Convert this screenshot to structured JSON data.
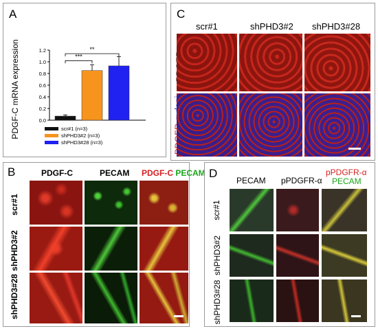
{
  "panelA": {
    "label": "A",
    "chart_data": {
      "type": "bar",
      "ylabel": "PDGF-C mRNA expression",
      "ylim": [
        0,
        1.2
      ],
      "yticks": [
        "0.0",
        "0.2",
        "0.4",
        "0.6",
        "0.8",
        "1.0",
        "1.2"
      ],
      "categories": [
        "scr#1 (n=3)",
        "shPHD3#2 (n=3)",
        "shPHD3#28 (n=3)"
      ],
      "values": [
        0.07,
        0.85,
        0.93
      ],
      "errors": [
        0.02,
        0.1,
        0.16
      ],
      "colors": [
        "#111111",
        "#f7941d",
        "#1f22f0"
      ],
      "legend": [
        "scr#1 (n=3)",
        "shPHD3#2 (n=3)",
        "shPHD3#28 (n=3)"
      ],
      "annotations": [
        "***",
        "**"
      ]
    }
  },
  "panelB": {
    "label": "B",
    "col1": "PDGF-C",
    "col2": "PECAM",
    "col3a": "PDGF-C",
    "col3b": "PECAM",
    "rows": [
      "scr#1",
      "shPHD3#2",
      "shPHD3#28"
    ]
  },
  "panelC": {
    "label": "C",
    "cols": [
      "scr#1",
      "shPHD3#2",
      "shPHD3#28"
    ],
    "row1": "PDGFR-α",
    "row2a": "PDGFR-α",
    "row2b": "dapi"
  },
  "panelD": {
    "label": "D",
    "col1": "PECAM",
    "col2": "pPDGFR-α",
    "col3a": "pPDGFR-α",
    "col3b": "PECAM",
    "rows": [
      "scr#1",
      "shPHD3#2",
      "shPHD3#28"
    ]
  },
  "colors": {
    "red_channel": "#c0201c",
    "green_channel": "#2fa52a",
    "blue_channel": "#3a2fb0",
    "merge_yellow": "#b8a025"
  }
}
